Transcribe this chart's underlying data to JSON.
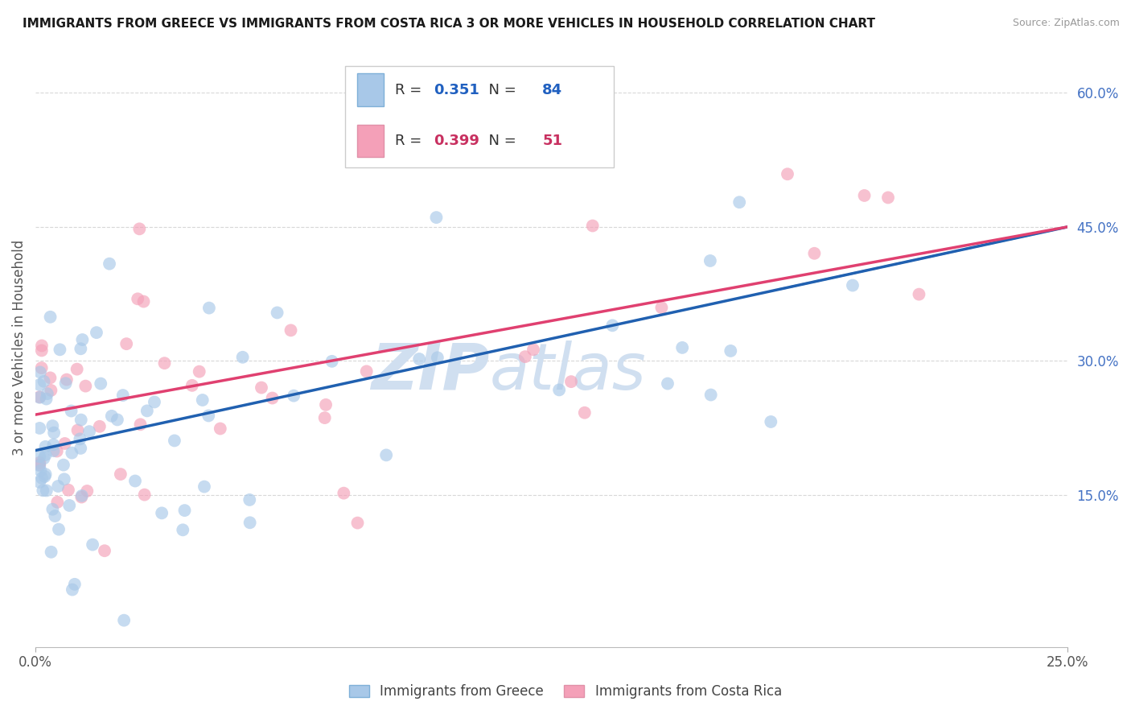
{
  "title": "IMMIGRANTS FROM GREECE VS IMMIGRANTS FROM COSTA RICA 3 OR MORE VEHICLES IN HOUSEHOLD CORRELATION CHART",
  "source": "Source: ZipAtlas.com",
  "ylabel_label": "3 or more Vehicles in Household",
  "y_ticks_right_vals": [
    0.15,
    0.3,
    0.45,
    0.6
  ],
  "x_lim": [
    0.0,
    0.25
  ],
  "y_lim": [
    -0.02,
    0.65
  ],
  "greece_R": 0.351,
  "greece_N": 84,
  "costarica_R": 0.399,
  "costarica_N": 51,
  "greece_color": "#a8c8e8",
  "costarica_color": "#f4a0b8",
  "greece_line_color": "#2060b0",
  "costarica_line_color": "#e04070",
  "dashed_line_color": "#90b8d8",
  "watermark_color": "#d0dff0",
  "background_color": "#ffffff",
  "grid_color": "#d8d8d8",
  "legend_box_blue": "#a8c8e8",
  "legend_box_pink": "#f4a0b8",
  "legend_border": "#c8c8c8",
  "right_tick_color": "#4472c4",
  "greece_line_intercept": 0.195,
  "greece_line_slope": 0.93,
  "costarica_line_intercept": 0.22,
  "costarica_line_slope": 1.05
}
